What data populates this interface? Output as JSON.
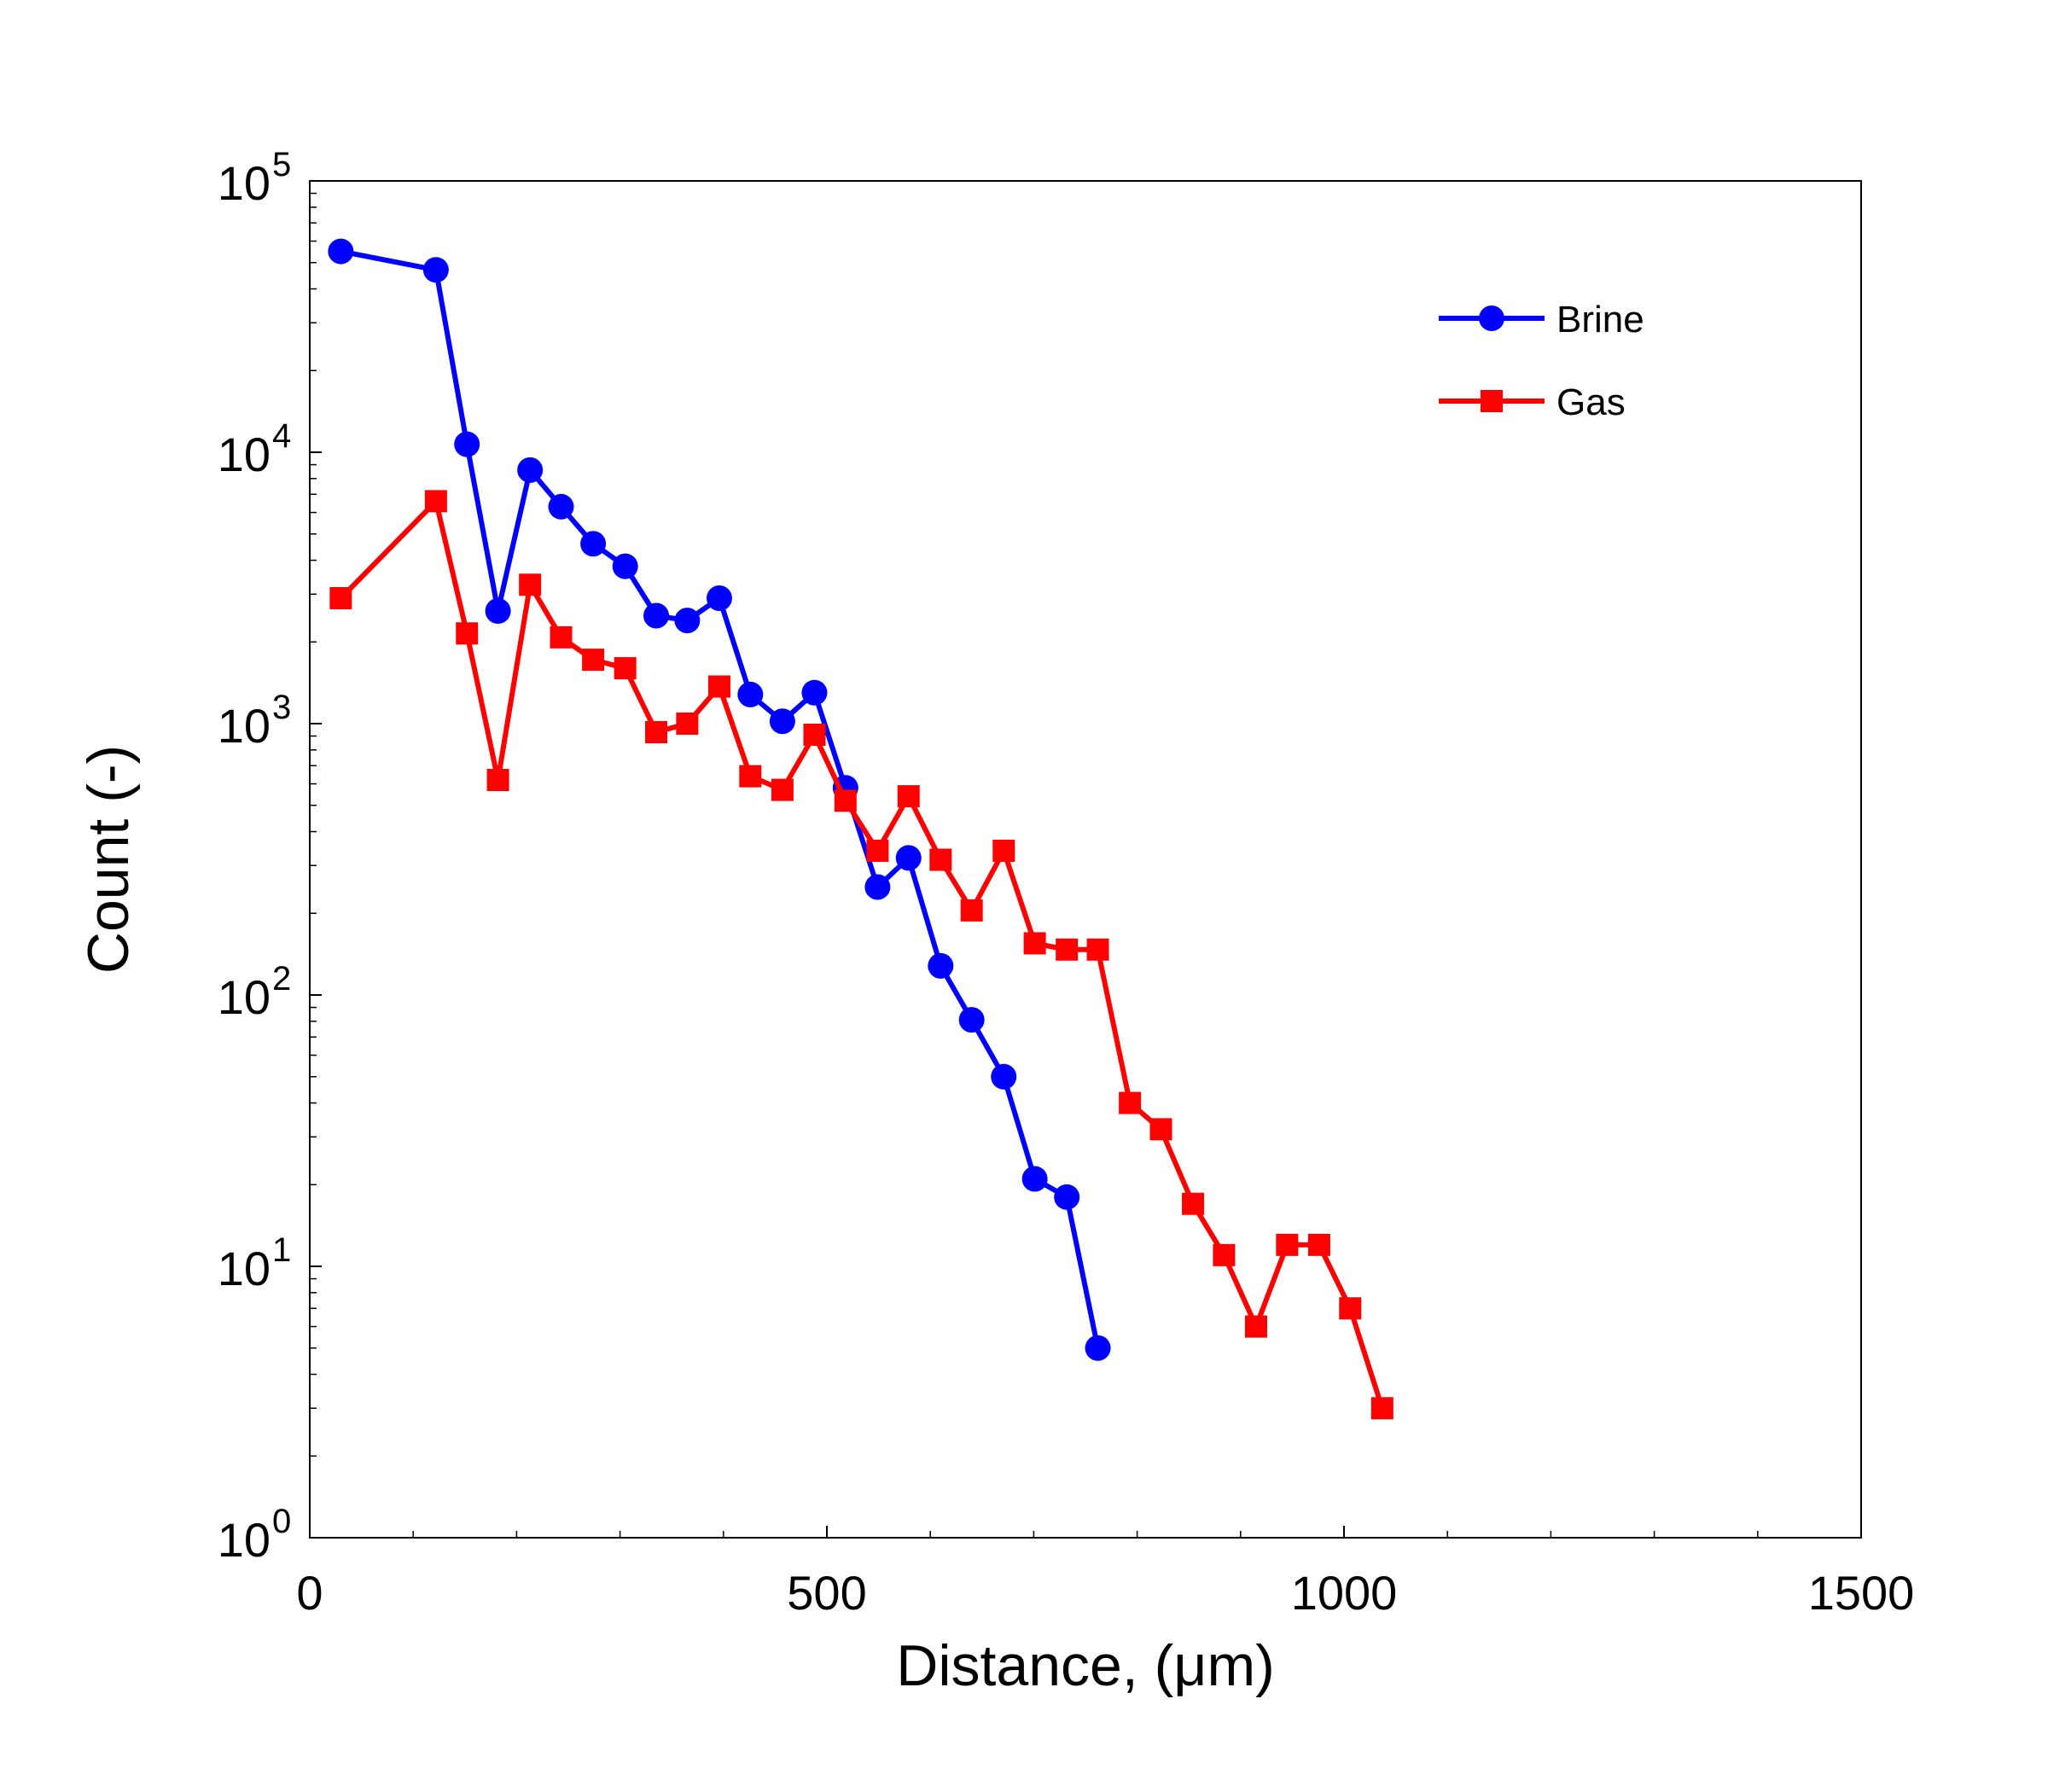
{
  "chart_data": {
    "type": "line",
    "title": "",
    "xlabel": "Distance, (μm)",
    "ylabel": "Count (-)",
    "xlim": [
      0,
      1500
    ],
    "ylim": [
      1,
      100000
    ],
    "yscale": "log",
    "xticks": [
      0,
      500,
      1000,
      1500
    ],
    "yticks": [
      1,
      10,
      100,
      1000,
      10000,
      100000
    ],
    "xtick_labels": [
      "0",
      "500",
      "1000",
      "1500"
    ],
    "ytick_labels": [
      {
        "base": "10",
        "exp": "0"
      },
      {
        "base": "10",
        "exp": "1"
      },
      {
        "base": "10",
        "exp": "2"
      },
      {
        "base": "10",
        "exp": "3"
      },
      {
        "base": "10",
        "exp": "4"
      },
      {
        "base": "10",
        "exp": "5"
      }
    ],
    "grid": false,
    "legend_position": "top-right",
    "series": [
      {
        "name": "Brine",
        "color": "#0000ff",
        "marker": "circle",
        "points": [
          [
            30,
            55000
          ],
          [
            122,
            47000
          ],
          [
            152,
            10700
          ],
          [
            182,
            2600
          ],
          [
            213,
            8600
          ],
          [
            243,
            6300
          ],
          [
            274,
            4600
          ],
          [
            305,
            3800
          ],
          [
            335,
            2500
          ],
          [
            365,
            2400
          ],
          [
            396,
            2900
          ],
          [
            426,
            1280
          ],
          [
            457,
            1020
          ],
          [
            488,
            1300
          ],
          [
            518,
            580
          ],
          [
            549,
            250
          ],
          [
            579,
            320
          ],
          [
            610,
            128
          ],
          [
            640,
            81
          ],
          [
            671,
            50
          ],
          [
            701,
            21
          ],
          [
            732,
            18
          ],
          [
            762,
            5
          ]
        ]
      },
      {
        "name": "Gas",
        "color": "#ff0000",
        "marker": "square",
        "points": [
          [
            30,
            2900
          ],
          [
            122,
            6600
          ],
          [
            152,
            2150
          ],
          [
            182,
            620
          ],
          [
            213,
            3250
          ],
          [
            243,
            2080
          ],
          [
            274,
            1720
          ],
          [
            305,
            1600
          ],
          [
            335,
            930
          ],
          [
            365,
            1000
          ],
          [
            396,
            1370
          ],
          [
            426,
            640
          ],
          [
            457,
            570
          ],
          [
            488,
            910
          ],
          [
            518,
            520
          ],
          [
            549,
            340
          ],
          [
            579,
            540
          ],
          [
            610,
            315
          ],
          [
            640,
            205
          ],
          [
            671,
            340
          ],
          [
            701,
            155
          ],
          [
            732,
            147
          ],
          [
            762,
            147
          ],
          [
            793,
            40
          ],
          [
            823,
            32
          ],
          [
            854,
            17
          ],
          [
            884,
            11
          ],
          [
            915,
            6
          ],
          [
            945,
            12
          ],
          [
            976,
            12
          ],
          [
            1006,
            7
          ],
          [
            1037,
            3
          ]
        ]
      }
    ]
  }
}
